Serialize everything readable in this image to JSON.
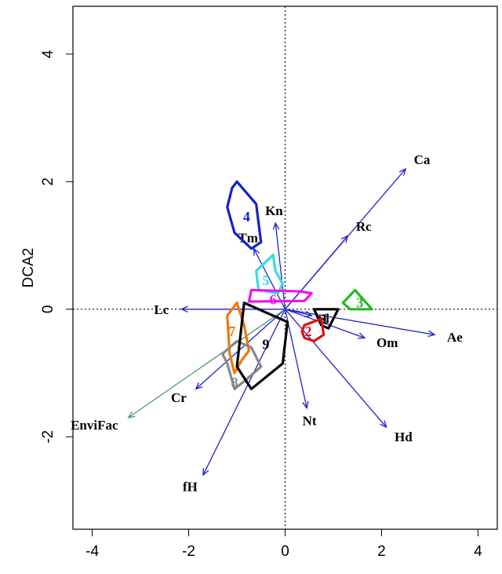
{
  "chart_data": {
    "type": "scatter",
    "title": "",
    "xlabel": "",
    "ylabel": "DCA2",
    "xlim": [
      -4.4,
      4.4
    ],
    "ylim": [
      -3.45,
      4.75
    ],
    "xticks": [
      -4,
      -2,
      0,
      2,
      4
    ],
    "yticks": [
      -2,
      0,
      2,
      4
    ],
    "reference_lines": {
      "x": 0,
      "y": 0,
      "style": "dotted"
    },
    "vectors": [
      {
        "label": "Ca",
        "x": 2.5,
        "y": 2.2,
        "color": "#2222cc"
      },
      {
        "label": "Rc",
        "x": 1.3,
        "y": 1.15,
        "color": "#2222cc"
      },
      {
        "label": "Kn",
        "x": -0.2,
        "y": 1.35,
        "color": "#2222cc"
      },
      {
        "label": "Tm",
        "x": -0.65,
        "y": 0.95,
        "color": "#2222cc"
      },
      {
        "label": "Sl",
        "x": 0.55,
        "y": -0.1,
        "color": "#2222cc"
      },
      {
        "label": "Ae",
        "x": 3.1,
        "y": -0.4,
        "color": "#2222cc"
      },
      {
        "label": "Om",
        "x": 1.65,
        "y": -0.45,
        "color": "#2222cc"
      },
      {
        "label": "Lc",
        "x": -2.15,
        "y": 0.0,
        "color": "#2222cc"
      },
      {
        "label": "Cr",
        "x": -1.85,
        "y": -1.25,
        "color": "#2222cc"
      },
      {
        "label": "Nt",
        "x": 0.45,
        "y": -1.55,
        "color": "#2222cc"
      },
      {
        "label": "Hd",
        "x": 2.1,
        "y": -1.85,
        "color": "#2222cc"
      },
      {
        "label": "fH",
        "x": -1.7,
        "y": -2.6,
        "color": "#2222cc"
      },
      {
        "label": "EnviFac",
        "x": -3.25,
        "y": -1.7,
        "color": "#4f9a6a"
      }
    ],
    "groups": [
      {
        "label": "1",
        "color": "#000000",
        "hull": [
          [
            0.6,
            0.0
          ],
          [
            1.1,
            0.0
          ],
          [
            0.9,
            -0.3
          ],
          [
            0.75,
            -0.25
          ]
        ],
        "label_pos": [
          0.82,
          -0.15
        ]
      },
      {
        "label": "2",
        "color": "#dd1111",
        "hull": [
          [
            0.4,
            -0.25
          ],
          [
            0.75,
            -0.15
          ],
          [
            0.8,
            -0.4
          ],
          [
            0.6,
            -0.5
          ],
          [
            0.4,
            -0.45
          ],
          [
            0.35,
            -0.35
          ]
        ],
        "label_pos": [
          0.48,
          -0.35
        ]
      },
      {
        "label": "3",
        "color": "#22bb22",
        "hull": [
          [
            1.45,
            0.3
          ],
          [
            1.8,
            0.0
          ],
          [
            1.35,
            0.0
          ],
          [
            1.2,
            0.1
          ]
        ],
        "label_pos": [
          1.55,
          0.1
        ]
      },
      {
        "label": "4",
        "color": "#1122cc",
        "hull": [
          [
            -1.0,
            2.0
          ],
          [
            -0.6,
            1.65
          ],
          [
            -0.5,
            1.05
          ],
          [
            -0.7,
            0.95
          ],
          [
            -1.05,
            1.2
          ],
          [
            -1.2,
            1.6
          ],
          [
            -1.1,
            1.9
          ]
        ],
        "label_pos": [
          -0.8,
          1.45
        ]
      },
      {
        "label": "5",
        "color": "#33dddd",
        "hull": [
          [
            -0.6,
            0.6
          ],
          [
            -0.25,
            0.85
          ],
          [
            -0.2,
            0.6
          ],
          [
            -0.05,
            0.4
          ],
          [
            -0.15,
            0.25
          ],
          [
            -0.55,
            0.3
          ]
        ],
        "label_pos": [
          -0.4,
          0.45
        ]
      },
      {
        "label": "6",
        "color": "#ee11ee",
        "hull": [
          [
            -0.7,
            0.3
          ],
          [
            0.3,
            0.28
          ],
          [
            0.55,
            0.25
          ],
          [
            0.4,
            0.13
          ],
          [
            -0.75,
            0.12
          ]
        ],
        "label_pos": [
          -0.25,
          0.15
        ]
      },
      {
        "label": "7",
        "color": "#ee7711",
        "hull": [
          [
            -1.2,
            -0.1
          ],
          [
            -1.0,
            0.1
          ],
          [
            -0.85,
            -0.25
          ],
          [
            -0.75,
            -0.65
          ],
          [
            -0.9,
            -0.8
          ],
          [
            -1.05,
            -1.0
          ],
          [
            -1.15,
            -0.7
          ]
        ],
        "label_pos": [
          -1.1,
          -0.35
        ]
      },
      {
        "label": "8",
        "color": "#888888",
        "hull": [
          [
            -1.0,
            -0.5
          ],
          [
            -0.7,
            -0.6
          ],
          [
            -0.5,
            -0.9
          ],
          [
            -0.8,
            -1.1
          ],
          [
            -1.05,
            -1.25
          ],
          [
            -1.2,
            -0.85
          ],
          [
            -1.3,
            -0.7
          ]
        ],
        "label_pos": [
          -1.05,
          -1.15
        ]
      },
      {
        "label": "9",
        "color": "#000000",
        "hull": [
          [
            -0.85,
            0.1
          ],
          [
            0.05,
            -0.2
          ],
          [
            -0.05,
            -0.85
          ],
          [
            -0.7,
            -1.25
          ],
          [
            -1.0,
            -0.9
          ]
        ],
        "label_pos": [
          -0.4,
          -0.55
        ]
      }
    ]
  }
}
